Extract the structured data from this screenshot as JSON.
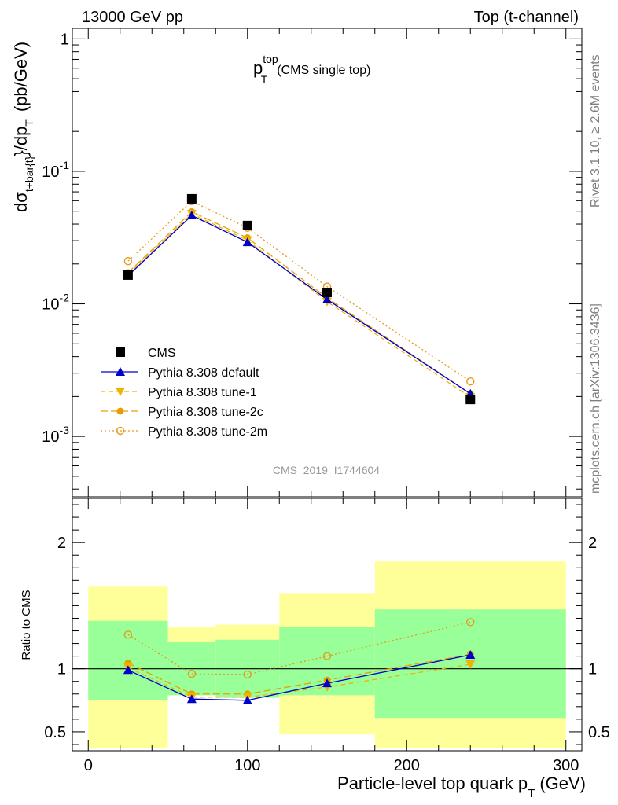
{
  "header": {
    "left": "13000 GeV pp",
    "right": "Top (t-channel)"
  },
  "side_text": {
    "rivet": "Rivet 3.1.10, ≥ 2.6M events",
    "mcplots": "mcplots.cern.ch [arXiv:1306.3436]"
  },
  "watermark": "CMS_2019_I1744604",
  "colors": {
    "cms": "#000000",
    "default": "#0000cc",
    "tune1": "#f0b400",
    "tune2c": "#e8a000",
    "tune2m": "#e69a1e",
    "band_outer": "#ffff99",
    "band_inner": "#99ff99"
  },
  "chart_data": [
    {
      "type": "scatter",
      "panel": "main",
      "title": {
        "main": "p",
        "sup": "top",
        "sub": "T",
        "rest": "(CMS single top)"
      },
      "ylabel": {
        "a": "dσ",
        "sub": "t+bar{t}",
        "b": "}/dp",
        "sub2": "T",
        "c": "(pb/GeV)"
      },
      "y_scale": "log",
      "xlim": [
        -10,
        310
      ],
      "ylim": [
        0.00035,
        1.2
      ],
      "yticks": [
        {
          "value": 1,
          "base": "1",
          "exp": ""
        },
        {
          "value": 0.1,
          "base": "10",
          "exp": "-1"
        },
        {
          "value": 0.01,
          "base": "10",
          "exp": "-2"
        },
        {
          "value": 0.001,
          "base": "10",
          "exp": "-3"
        }
      ],
      "x": [
        25,
        65,
        100,
        150,
        240
      ],
      "series": [
        {
          "key": "cms",
          "name": "CMS",
          "marker": "square",
          "dash": "none",
          "values": [
            0.0165,
            0.062,
            0.039,
            0.0122,
            0.0019
          ]
        },
        {
          "key": "default",
          "name": "Pythia 8.308 default",
          "marker": "triangle-up",
          "dash": "solid",
          "values": [
            0.0163,
            0.0465,
            0.0292,
            0.0108,
            0.0021
          ]
        },
        {
          "key": "tune1",
          "name": "Pythia 8.308 tune-1",
          "marker": "triangle-down",
          "dash": "6,4",
          "values": [
            0.0168,
            0.0478,
            0.0302,
            0.0104,
            0.00198
          ]
        },
        {
          "key": "tune2c",
          "name": "Pythia 8.308 tune-2c",
          "marker": "circle-filled",
          "dash": "9,4",
          "values": [
            0.0172,
            0.0495,
            0.0315,
            0.0111,
            0.0021
          ]
        },
        {
          "key": "tune2m",
          "name": "Pythia 8.308 tune-2m",
          "marker": "circle-open",
          "dash": "2,3",
          "values": [
            0.021,
            0.0595,
            0.0375,
            0.0135,
            0.0026
          ]
        }
      ]
    },
    {
      "type": "line",
      "panel": "ratio",
      "ylabel": "Ratio to CMS",
      "xlabel": {
        "main": "Particle-level top quark p",
        "sub": "T",
        "unit": "(GeV)"
      },
      "xlim": [
        -10,
        310
      ],
      "ylim": [
        0.35,
        2.35
      ],
      "xticks": [
        0,
        100,
        200,
        300
      ],
      "yticks": [
        0.5,
        1,
        2
      ],
      "bins": [
        {
          "lo": 0,
          "hi": 50,
          "inner": [
            0.75,
            1.38
          ],
          "outer": [
            0.37,
            1.65
          ]
        },
        {
          "lo": 50,
          "hi": 80,
          "inner": [
            0.79,
            1.21
          ],
          "outer": [
            0.79,
            1.33
          ]
        },
        {
          "lo": 80,
          "hi": 120,
          "inner": [
            0.77,
            1.23
          ],
          "outer": [
            0.77,
            1.35
          ]
        },
        {
          "lo": 120,
          "hi": 180,
          "inner": [
            0.79,
            1.33
          ],
          "outer": [
            0.48,
            1.6
          ]
        },
        {
          "lo": 180,
          "hi": 300,
          "inner": [
            0.61,
            1.47
          ],
          "outer": [
            0.37,
            1.85
          ]
        }
      ],
      "x": [
        25,
        65,
        100,
        150,
        240
      ],
      "series": [
        {
          "key": "default",
          "name": "Pythia 8.308 default",
          "values": [
            0.99,
            0.76,
            0.75,
            0.885,
            1.11
          ]
        },
        {
          "key": "tune1",
          "name": "Pythia 8.308 tune-1",
          "values": [
            1.01,
            0.775,
            0.775,
            0.855,
            1.035
          ]
        },
        {
          "key": "tune2c",
          "name": "Pythia 8.308 tune-2c",
          "values": [
            1.045,
            0.8,
            0.8,
            0.91,
            1.115
          ]
        },
        {
          "key": "tune2m",
          "name": "Pythia 8.308 tune-2m",
          "values": [
            1.27,
            0.96,
            0.955,
            1.1,
            1.37
          ]
        }
      ]
    }
  ]
}
